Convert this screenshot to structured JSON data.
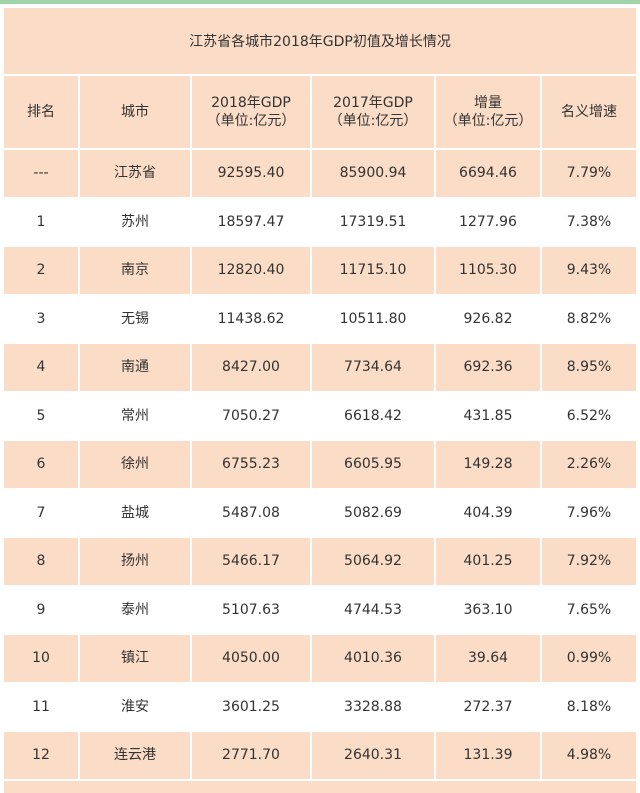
{
  "title": "江苏省各城市2018年GDP初值及增长情况",
  "headers": [
    {
      "line1": "排名",
      "line2": ""
    },
    {
      "line1": "城市",
      "line2": ""
    },
    {
      "line1": "2018年GDP",
      "line2": "（单位:亿元）"
    },
    {
      "line1": "2017年GDP",
      "line2": "（单位:亿元）"
    },
    {
      "line1": "增量",
      "line2": "（单位:亿元）"
    },
    {
      "line1": "名义增速",
      "line2": ""
    }
  ],
  "rows": [
    [
      "---",
      "江苏省",
      "92595.40",
      "85900.94",
      "6694.46",
      "7.79%"
    ],
    [
      "1",
      "苏州",
      "18597.47",
      "17319.51",
      "1277.96",
      "7.38%"
    ],
    [
      "2",
      "南京",
      "12820.40",
      "11715.10",
      "1105.30",
      "9.43%"
    ],
    [
      "3",
      "无锡",
      "11438.62",
      "10511.80",
      "926.82",
      "8.82%"
    ],
    [
      "4",
      "南通",
      "8427.00",
      "7734.64",
      "692.36",
      "8.95%"
    ],
    [
      "5",
      "常州",
      "7050.27",
      "6618.42",
      "431.85",
      "6.52%"
    ],
    [
      "6",
      "徐州",
      "6755.23",
      "6605.95",
      "149.28",
      "2.26%"
    ],
    [
      "7",
      "盐城",
      "5487.08",
      "5082.69",
      "404.39",
      "7.96%"
    ],
    [
      "8",
      "扬州",
      "5466.17",
      "5064.92",
      "401.25",
      "7.92%"
    ],
    [
      "9",
      "泰州",
      "5107.63",
      "4744.53",
      "363.10",
      "7.65%"
    ],
    [
      "10",
      "镇江",
      "4050.00",
      "4010.36",
      "39.64",
      "0.99%"
    ],
    [
      "11",
      "淮安",
      "3601.25",
      "3328.88",
      "272.37",
      "8.18%"
    ],
    [
      "12",
      "连云港",
      "2771.70",
      "2640.31",
      "131.39",
      "4.98%"
    ]
  ],
  "colors": {
    "band": "#fbdcc6",
    "white": "#ffffff",
    "topline": "#9fd3a8"
  }
}
